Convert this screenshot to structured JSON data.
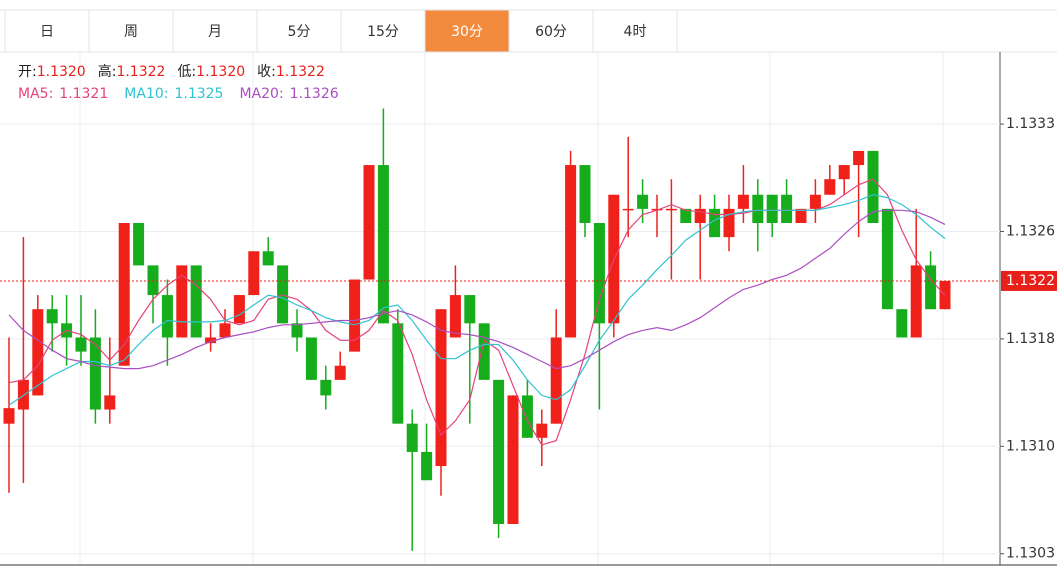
{
  "chart_data": {
    "type": "candlestick",
    "tabs": [
      "日",
      "周",
      "月",
      "5分",
      "15分",
      "30分",
      "60分",
      "4时"
    ],
    "active_tab": "30分",
    "info": [
      {
        "label": "开:",
        "value": "1.1320"
      },
      {
        "label": "高:",
        "value": "1.1322"
      },
      {
        "label": "低:",
        "value": "1.1320"
      },
      {
        "label": "收:",
        "value": "1.1322"
      }
    ],
    "up_color": "#f0201a",
    "down_color": "#16ac1c",
    "ylim": [
      1.13019,
      1.13382
    ],
    "yticks": [
      {
        "value": 1.13331,
        "label": "1.1333"
      },
      {
        "value": 1.13255,
        "label": "1.1326"
      },
      {
        "value": 1.13179,
        "label": "1.1318"
      },
      {
        "value": 1.13103,
        "label": "1.1310"
      },
      {
        "value": 1.13027,
        "label": "1.1303"
      }
    ],
    "grid": true,
    "current": {
      "value": 1.1322,
      "label": "1.1322"
    },
    "open": [
      1.13119,
      1.13129,
      1.13139,
      1.132,
      1.1319,
      1.1318,
      1.1318,
      1.13129,
      1.1316,
      1.13261,
      1.13231,
      1.1321,
      1.1318,
      1.13231,
      1.13176,
      1.1318,
      1.1319,
      1.1321,
      1.13241,
      1.13231,
      1.1319,
      1.1318,
      1.1315,
      1.1315,
      1.1317,
      1.13221,
      1.13302,
      1.1319,
      1.13119,
      1.13099,
      1.13089,
      1.1318,
      1.1321,
      1.1319,
      1.1315,
      1.13048,
      1.13139,
      1.13109,
      1.13119,
      1.1318,
      1.13302,
      1.13261,
      1.1319,
      1.1327,
      1.13281,
      1.1327,
      1.1327,
      1.13271,
      1.13261,
      1.13271,
      1.13251,
      1.13271,
      1.13281,
      1.13281,
      1.13281,
      1.13261,
      1.13271,
      1.13281,
      1.13292,
      1.13302,
      1.13312,
      1.13271,
      1.132,
      1.1318,
      1.13231,
      1.132
    ],
    "high": [
      1.1318,
      1.13251,
      1.1321,
      1.1321,
      1.1321,
      1.1321,
      1.132,
      1.1318,
      1.13261,
      1.13261,
      1.13231,
      1.13221,
      1.13231,
      1.13231,
      1.1319,
      1.132,
      1.1321,
      1.13241,
      1.13251,
      1.13231,
      1.132,
      1.1318,
      1.1316,
      1.1317,
      1.13221,
      1.13302,
      1.13342,
      1.132,
      1.13129,
      1.13119,
      1.132,
      1.13231,
      1.1321,
      1.1319,
      1.1315,
      1.13139,
      1.1315,
      1.13129,
      1.132,
      1.13312,
      1.13302,
      1.13261,
      1.13281,
      1.13322,
      1.13292,
      1.13281,
      1.13292,
      1.13271,
      1.13281,
      1.13281,
      1.13281,
      1.13302,
      1.13292,
      1.13281,
      1.13292,
      1.13271,
      1.13292,
      1.13302,
      1.13302,
      1.13312,
      1.13312,
      1.13271,
      1.132,
      1.13271,
      1.13241,
      1.1322
    ],
    "low": [
      1.1307,
      1.13077,
      1.13139,
      1.1317,
      1.1316,
      1.1316,
      1.13119,
      1.13119,
      1.1316,
      1.13231,
      1.1319,
      1.1316,
      1.1318,
      1.1318,
      1.1317,
      1.1318,
      1.1319,
      1.1321,
      1.13231,
      1.1319,
      1.1317,
      1.1315,
      1.13129,
      1.1315,
      1.1317,
      1.13221,
      1.1319,
      1.13119,
      1.13029,
      1.13079,
      1.13068,
      1.1318,
      1.13119,
      1.1315,
      1.13038,
      1.13048,
      1.13109,
      1.13089,
      1.13119,
      1.1318,
      1.13251,
      1.13129,
      1.1318,
      1.13251,
      1.13261,
      1.13251,
      1.13221,
      1.13261,
      1.13221,
      1.13251,
      1.13241,
      1.13261,
      1.13241,
      1.13251,
      1.13261,
      1.13261,
      1.13261,
      1.13281,
      1.13281,
      1.13251,
      1.13261,
      1.132,
      1.1318,
      1.1318,
      1.132,
      1.132
    ],
    "close": [
      1.1313,
      1.1315,
      1.132,
      1.1319,
      1.1318,
      1.1317,
      1.13129,
      1.13139,
      1.13261,
      1.13231,
      1.1321,
      1.1318,
      1.13231,
      1.1318,
      1.1318,
      1.1319,
      1.1321,
      1.13241,
      1.13231,
      1.1319,
      1.1318,
      1.1315,
      1.13139,
      1.1316,
      1.13221,
      1.13302,
      1.1319,
      1.13119,
      1.13099,
      1.13079,
      1.132,
      1.1321,
      1.1319,
      1.1315,
      1.13048,
      1.13139,
      1.13109,
      1.13119,
      1.1318,
      1.13302,
      1.13261,
      1.1319,
      1.13281,
      1.13271,
      1.13271,
      1.13271,
      1.13271,
      1.13261,
      1.13271,
      1.13251,
      1.13271,
      1.13281,
      1.13261,
      1.13261,
      1.13261,
      1.13271,
      1.13281,
      1.13292,
      1.13302,
      1.13312,
      1.13261,
      1.132,
      1.1318,
      1.13231,
      1.132,
      1.1322
    ],
    "series": [
      {
        "name": "MA5:",
        "last_label": "1.1321",
        "color": "#e4437c",
        "values": [
          1.13148,
          1.1315,
          1.1316,
          1.13178,
          1.13185,
          1.13182,
          1.13175,
          1.13164,
          1.13175,
          1.13192,
          1.13207,
          1.13217,
          1.13224,
          1.13217,
          1.13207,
          1.13192,
          1.13189,
          1.13192,
          1.13207,
          1.1321,
          1.13207,
          1.13199,
          1.13185,
          1.13178,
          1.13178,
          1.13185,
          1.13199,
          1.13192,
          1.13168,
          1.13136,
          1.13111,
          1.13121,
          1.13136,
          1.13178,
          1.13171,
          1.13146,
          1.13121,
          1.13104,
          1.13107,
          1.13136,
          1.13168,
          1.13207,
          1.13235,
          1.13256,
          1.13267,
          1.1327,
          1.13274,
          1.1327,
          1.13269,
          1.13267,
          1.13267,
          1.13268,
          1.1327,
          1.1327,
          1.1327,
          1.1327,
          1.1327,
          1.13274,
          1.13281,
          1.13288,
          1.13292,
          1.13281,
          1.13256,
          1.13235,
          1.13221,
          1.1321
        ]
      },
      {
        "name": "MA10:",
        "last_label": "1.1325",
        "color": "#2fc3d2",
        "values": [
          1.13132,
          1.13139,
          1.13146,
          1.13153,
          1.13158,
          1.13163,
          1.13163,
          1.1316,
          1.13164,
          1.13175,
          1.13185,
          1.13192,
          1.13191,
          1.13191,
          1.13191,
          1.13192,
          1.13196,
          1.13203,
          1.1321,
          1.13208,
          1.13203,
          1.13199,
          1.13194,
          1.13191,
          1.13189,
          1.13192,
          1.13201,
          1.13203,
          1.13192,
          1.13178,
          1.13165,
          1.13165,
          1.13171,
          1.13175,
          1.13175,
          1.13164,
          1.1315,
          1.13139,
          1.13136,
          1.13143,
          1.1316,
          1.13178,
          1.13192,
          1.13207,
          1.13217,
          1.13228,
          1.13238,
          1.13249,
          1.13256,
          1.13263,
          1.13267,
          1.13269,
          1.1327,
          1.1327,
          1.1327,
          1.1327,
          1.1327,
          1.13272,
          1.13274,
          1.13277,
          1.13281,
          1.13279,
          1.13274,
          1.13267,
          1.13258,
          1.1325
        ]
      },
      {
        "name": "MA20:",
        "last_label": "1.1326",
        "color": "#ab4fc2",
        "values": [
          1.13196,
          1.13185,
          1.13178,
          1.13171,
          1.13165,
          1.13163,
          1.1316,
          1.13159,
          1.13158,
          1.13158,
          1.1316,
          1.13164,
          1.13168,
          1.13173,
          1.13177,
          1.1318,
          1.13182,
          1.13184,
          1.13187,
          1.13189,
          1.13189,
          1.1319,
          1.13191,
          1.13192,
          1.13192,
          1.13194,
          1.13197,
          1.13199,
          1.13196,
          1.13191,
          1.13185,
          1.13183,
          1.13182,
          1.1318,
          1.13177,
          1.13173,
          1.13168,
          1.13163,
          1.13158,
          1.1316,
          1.13165,
          1.13171,
          1.13177,
          1.13182,
          1.13185,
          1.13187,
          1.13185,
          1.13189,
          1.13194,
          1.13201,
          1.13208,
          1.13214,
          1.13217,
          1.13221,
          1.13224,
          1.13229,
          1.13236,
          1.13243,
          1.13253,
          1.13262,
          1.13269,
          1.1327,
          1.1327,
          1.13269,
          1.13265,
          1.1326
        ]
      }
    ]
  }
}
